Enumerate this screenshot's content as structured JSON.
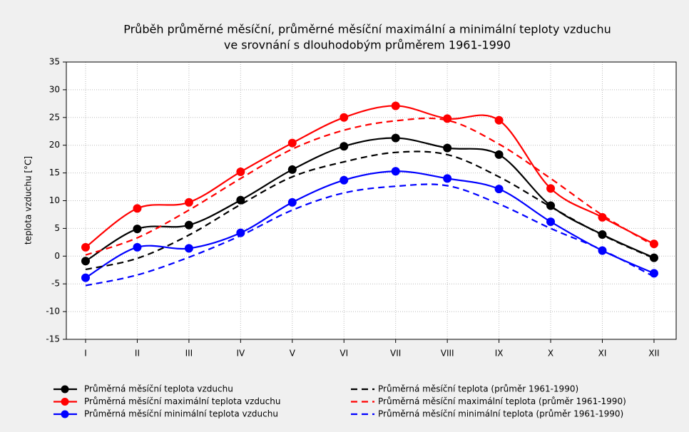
{
  "chart_data": {
    "type": "line",
    "title": [
      "Průběh průměrné měsíční, průměrné měsíční maximální a minimální teploty vzduchu",
      "ve srovnání s dlouhodobým průměrem 1961-1990"
    ],
    "y_label": "teplota vzduchu [°C]",
    "categories": [
      "I",
      "II",
      "III",
      "IV",
      "V",
      "VI",
      "VII",
      "VIII",
      "IX",
      "X",
      "XI",
      "XII"
    ],
    "ylim": [
      -15,
      35
    ],
    "yticks": [
      -15,
      -10,
      -5,
      0,
      5,
      10,
      15,
      20,
      25,
      30,
      35
    ],
    "grid": true,
    "series": [
      {
        "name": "Průměrná měsíční teplota vzduchu",
        "color": "#000000",
        "line_style": "solid",
        "markers": true,
        "values": [
          -0.9,
          4.9,
          5.6,
          10.1,
          15.6,
          19.8,
          21.3,
          19.5,
          18.3,
          9.1,
          3.9,
          -0.3
        ]
      },
      {
        "name": "Průměrná měsíční maximální teplota vzduchu",
        "color": "#ff0000",
        "line_style": "solid",
        "markers": true,
        "values": [
          1.6,
          8.6,
          9.7,
          15.2,
          20.4,
          25.0,
          27.1,
          24.8,
          24.5,
          12.2,
          7.0,
          2.2
        ]
      },
      {
        "name": "Průměrná měsíční minimální teplota vzduchu",
        "color": "#0000ff",
        "line_style": "solid",
        "markers": true,
        "values": [
          -3.9,
          1.6,
          1.4,
          4.2,
          9.7,
          13.7,
          15.3,
          14.0,
          12.1,
          6.2,
          1.0,
          -3.1
        ]
      },
      {
        "name": "Průměrná měsíční teplota (průměr 1961-1990)",
        "color": "#000000",
        "line_style": "dashed",
        "markers": false,
        "values": [
          -2.4,
          -0.4,
          3.8,
          9.3,
          14.3,
          17.0,
          18.7,
          18.3,
          14.3,
          8.9,
          3.8,
          -0.4
        ]
      },
      {
        "name": "Průměrná měsíční maximální teplota (průměr 1961-1990)",
        "color": "#ff0000",
        "line_style": "dashed",
        "markers": false,
        "values": [
          0.2,
          3.3,
          8.3,
          14.0,
          19.3,
          22.7,
          24.4,
          24.5,
          20.2,
          14.0,
          7.4,
          1.9
        ]
      },
      {
        "name": "Průměrná měsíční minimální teplota (průměr 1961-1990)",
        "color": "#0000ff",
        "line_style": "dashed",
        "markers": false,
        "values": [
          -5.3,
          -3.4,
          -0.2,
          3.7,
          8.3,
          11.4,
          12.6,
          12.7,
          9.4,
          5.0,
          1.1,
          -3.7
        ]
      }
    ]
  }
}
